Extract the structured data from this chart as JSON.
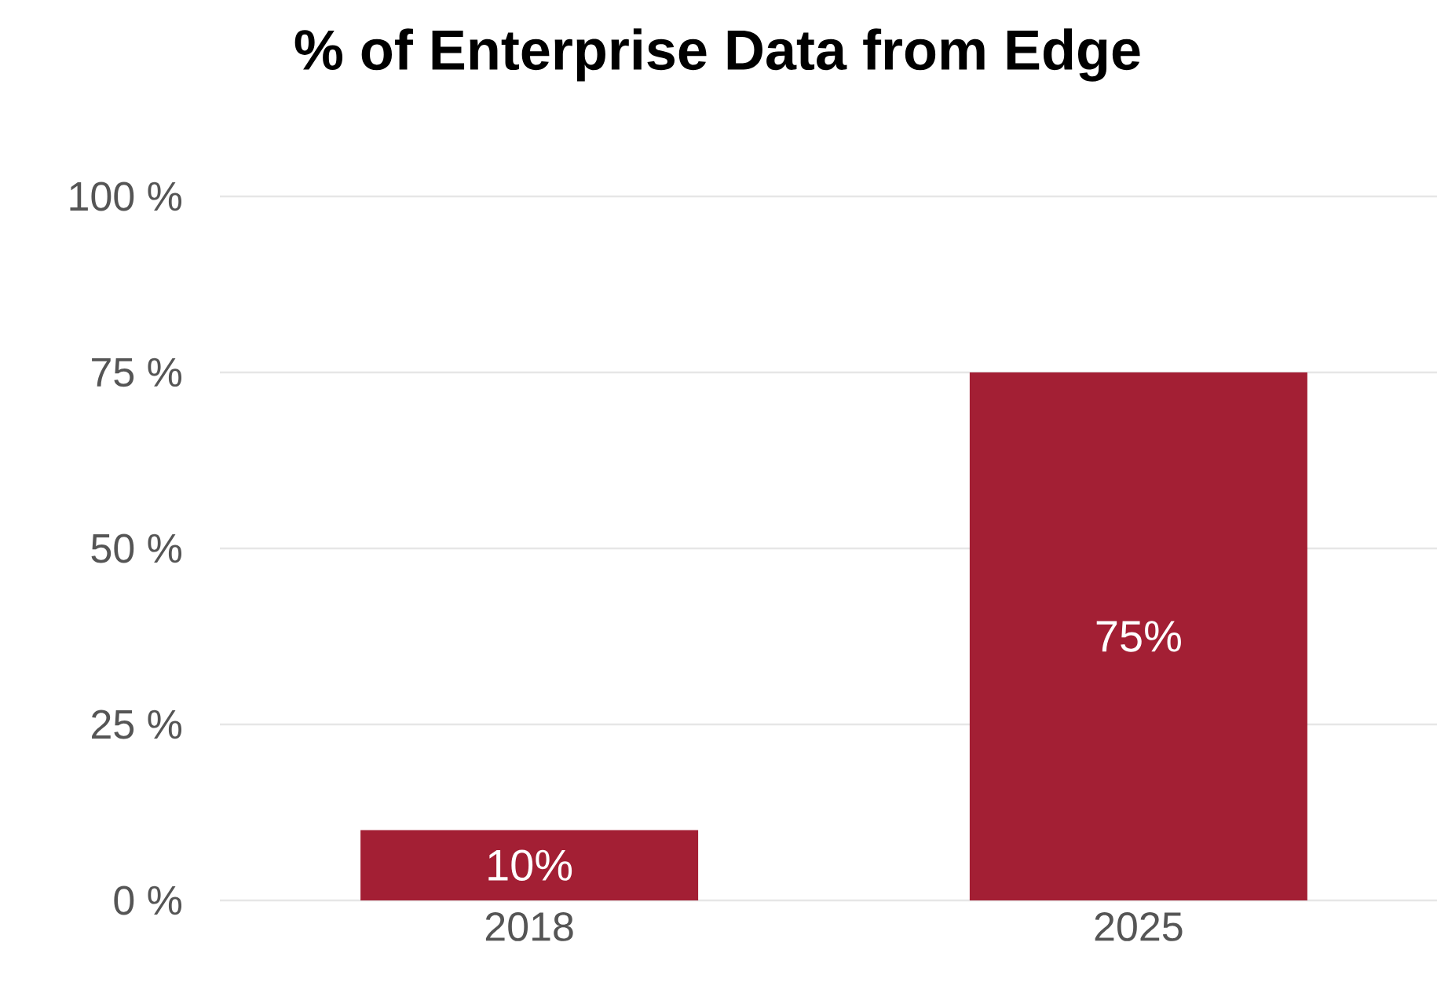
{
  "chart_data": {
    "type": "bar",
    "title": "% of Enterprise Data from Edge",
    "categories": [
      "2018",
      "2025"
    ],
    "values": [
      10,
      75
    ],
    "value_labels": [
      "10%",
      "75%"
    ],
    "color": "#a31f34",
    "ylim": [
      0,
      100
    ],
    "yticks": [
      {
        "value": 0,
        "label": "0 %"
      },
      {
        "value": 25,
        "label": "25 %"
      },
      {
        "value": 50,
        "label": "50 %"
      },
      {
        "value": 75,
        "label": "75 %"
      },
      {
        "value": 100,
        "label": "100 %"
      }
    ],
    "grid": "y"
  }
}
